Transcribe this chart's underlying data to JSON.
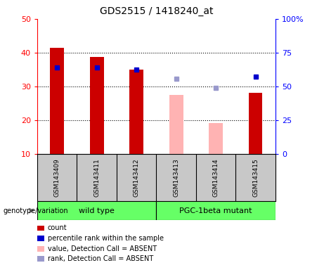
{
  "title": "GDS2515 / 1418240_at",
  "samples": [
    "GSM143409",
    "GSM143411",
    "GSM143412",
    "GSM143413",
    "GSM143414",
    "GSM143415"
  ],
  "count_values": [
    41.5,
    38.8,
    35.0,
    null,
    null,
    28.0
  ],
  "count_absent_values": [
    null,
    null,
    null,
    27.5,
    19.2,
    null
  ],
  "percentile_left_values": [
    35.5,
    35.5,
    35.0,
    null,
    null,
    32.8
  ],
  "percentile_absent_left_values": [
    null,
    null,
    null,
    32.2,
    29.5,
    null
  ],
  "ylim_left": [
    10,
    50
  ],
  "ylim_right": [
    0,
    100
  ],
  "yticks_left": [
    10,
    20,
    30,
    40,
    50
  ],
  "yticks_right": [
    0,
    25,
    50,
    75,
    100
  ],
  "yticklabels_right": [
    "0",
    "25",
    "50",
    "75",
    "100%"
  ],
  "bar_width": 0.35,
  "count_color": "#cc0000",
  "count_absent_color": "#ffb3b3",
  "percentile_color": "#0000cc",
  "percentile_absent_color": "#9999cc",
  "bg_color": "#c8c8c8",
  "group_color": "#66ff66",
  "wt_label": "wild type",
  "pgc_label": "PGC-1beta mutant",
  "legend_items": [
    {
      "label": "count",
      "color": "#cc0000"
    },
    {
      "label": "percentile rank within the sample",
      "color": "#0000cc"
    },
    {
      "label": "value, Detection Call = ABSENT",
      "color": "#ffb3b3"
    },
    {
      "label": "rank, Detection Call = ABSENT",
      "color": "#9999cc"
    }
  ],
  "genotype_label": "genotype/variation"
}
